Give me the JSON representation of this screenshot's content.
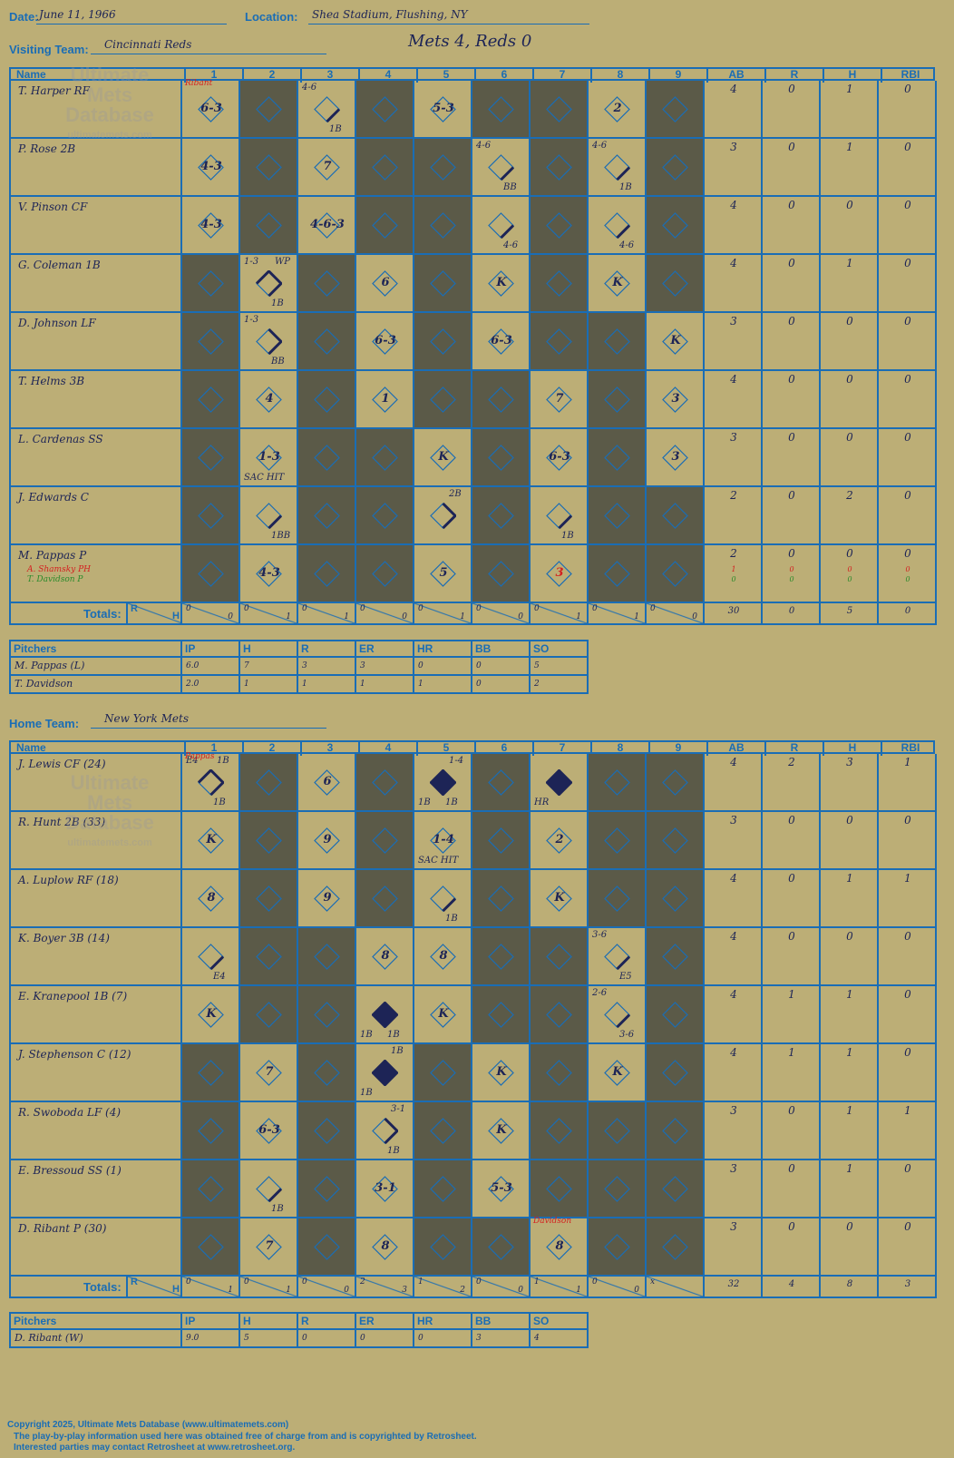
{
  "header": {
    "date_label": "Date:",
    "date": "June 11, 1966",
    "location_label": "Location:",
    "location": "Shea Stadium, Flushing, NY",
    "visiting_label": "Visiting Team:",
    "visiting_team": "Cincinnati Reds",
    "home_label": "Home Team:",
    "home_team": "New York Mets",
    "result": "Mets 4, Reds 0"
  },
  "columns": {
    "name": "Name",
    "innings": [
      "1",
      "2",
      "3",
      "4",
      "5",
      "6",
      "7",
      "8",
      "9"
    ],
    "ab": "AB",
    "r": "R",
    "h": "H",
    "rbi": "RBI"
  },
  "totals_label": "Totals:",
  "totals_r": "R",
  "totals_h": "H",
  "watermark": {
    "l1": "Ultimate",
    "l2": "Mets",
    "l3": "Database",
    "l4": "ultimatemets.com"
  },
  "visitors": {
    "players": [
      {
        "name": "T. Harper RF",
        "ab": "4",
        "r": "0",
        "h": "1",
        "rbi": "0"
      },
      {
        "name": "P. Rose 2B",
        "ab": "3",
        "r": "0",
        "h": "1",
        "rbi": "0"
      },
      {
        "name": "V. Pinson CF",
        "ab": "4",
        "r": "0",
        "h": "0",
        "rbi": "0"
      },
      {
        "name": "G. Coleman 1B",
        "ab": "4",
        "r": "0",
        "h": "1",
        "rbi": "0"
      },
      {
        "name": "D. Johnson LF",
        "ab": "3",
        "r": "0",
        "h": "0",
        "rbi": "0"
      },
      {
        "name": "T. Helms 3B",
        "ab": "4",
        "r": "0",
        "h": "0",
        "rbi": "0"
      },
      {
        "name": "L. Cardenas SS",
        "ab": "3",
        "r": "0",
        "h": "0",
        "rbi": "0"
      },
      {
        "name": "J. Edwards C",
        "ab": "2",
        "r": "0",
        "h": "2",
        "rbi": "0"
      },
      {
        "name": "M. Pappas P",
        "ab": "2",
        "r": "0",
        "h": "0",
        "rbi": "0",
        "subs": [
          {
            "name": "A. Shamsky PH",
            "ab": "1",
            "r": "0",
            "h": "0",
            "rbi": "0"
          },
          {
            "name": "T. Davidson P",
            "ab": "0",
            "r": "0",
            "h": "0",
            "rbi": "0"
          }
        ]
      }
    ],
    "totals": {
      "innings": [
        [
          "0",
          "0"
        ],
        [
          "0",
          "1"
        ],
        [
          "0",
          "1"
        ],
        [
          "0",
          "0"
        ],
        [
          "0",
          "1"
        ],
        [
          "0",
          "0"
        ],
        [
          "0",
          "1"
        ],
        [
          "0",
          "1"
        ],
        [
          "0",
          "0"
        ]
      ],
      "ab": "30",
      "r": "0",
      "h": "5",
      "rbi": "0"
    },
    "pitchers": [
      {
        "name": "M. Pappas (L)",
        "ip": "6.0",
        "h": "7",
        "r": "3",
        "er": "3",
        "hr": "0",
        "bb": "0",
        "so": "5"
      },
      {
        "name": "T. Davidson",
        "ip": "2.0",
        "h": "1",
        "r": "1",
        "er": "1",
        "hr": "1",
        "bb": "0",
        "so": "2"
      }
    ]
  },
  "home": {
    "players": [
      {
        "name": "J. Lewis CF (24)",
        "ab": "4",
        "r": "2",
        "h": "3",
        "rbi": "1"
      },
      {
        "name": "R. Hunt 2B (33)",
        "ab": "3",
        "r": "0",
        "h": "0",
        "rbi": "0"
      },
      {
        "name": "A. Luplow RF (18)",
        "ab": "4",
        "r": "0",
        "h": "1",
        "rbi": "1"
      },
      {
        "name": "K. Boyer 3B (14)",
        "ab": "4",
        "r": "0",
        "h": "0",
        "rbi": "0"
      },
      {
        "name": "E. Kranepool 1B (7)",
        "ab": "4",
        "r": "1",
        "h": "1",
        "rbi": "0"
      },
      {
        "name": "J. Stephenson C (12)",
        "ab": "4",
        "r": "1",
        "h": "1",
        "rbi": "0"
      },
      {
        "name": "R. Swoboda LF (4)",
        "ab": "3",
        "r": "0",
        "h": "1",
        "rbi": "1"
      },
      {
        "name": "E. Bressoud SS (1)",
        "ab": "3",
        "r": "0",
        "h": "1",
        "rbi": "0"
      },
      {
        "name": "D. Ribant P (30)",
        "ab": "3",
        "r": "0",
        "h": "0",
        "rbi": "0"
      }
    ],
    "totals": {
      "innings": [
        [
          "0",
          "1"
        ],
        [
          "0",
          "1"
        ],
        [
          "0",
          "0"
        ],
        [
          "2",
          "3"
        ],
        [
          "1",
          "2"
        ],
        [
          "0",
          "0"
        ],
        [
          "1",
          "1"
        ],
        [
          "0",
          "0"
        ],
        [
          "x",
          ""
        ]
      ],
      "ab": "32",
      "r": "4",
      "h": "8",
      "rbi": "3"
    },
    "pitchers": [
      {
        "name": "D. Ribant (W)",
        "ip": "9.0",
        "h": "5",
        "r": "0",
        "er": "0",
        "hr": "0",
        "bb": "3",
        "so": "4"
      }
    ]
  },
  "pitcher_cols": {
    "pitchers": "Pitchers",
    "ip": "IP",
    "h": "H",
    "r": "R",
    "er": "ER",
    "hr": "HR",
    "bb": "BB",
    "so": "SO"
  },
  "footer": {
    "l1": "Copyright 2025, Ultimate Mets Database (www.ultimatemets.com)",
    "l2": "The play-by-play information used here was obtained free of charge from and is copyrighted by Retrosheet.",
    "l3": "Interested parties may contact Retrosheet at www.retrosheet.org."
  },
  "plays": {
    "visitors": [
      [
        {
          "i": 1,
          "r": "6-3",
          "note": "Ribant",
          "noteColor": "red"
        },
        {
          "i": 3,
          "r": "",
          "tl": "4-6",
          "br": "1B",
          "path": "1"
        },
        {
          "i": 5,
          "r": "5-3"
        },
        {
          "i": 8,
          "r": "2"
        }
      ],
      [
        {
          "i": 1,
          "r": "4-3"
        },
        {
          "i": 3,
          "r": "7"
        },
        {
          "i": 6,
          "r": "",
          "tl": "4-6",
          "br": "BB",
          "path": "1"
        },
        {
          "i": 8,
          "r": "",
          "tl": "4-6",
          "br": "1B",
          "path": "1"
        }
      ],
      [
        {
          "i": 1,
          "r": "4-3"
        },
        {
          "i": 3,
          "r": "4-6-3"
        },
        {
          "i": 6,
          "r": "",
          "br": "4-6",
          "path": "1"
        },
        {
          "i": 8,
          "r": "",
          "br": "4-6",
          "path": "1"
        }
      ],
      [
        {
          "i": 2,
          "r": "",
          "tl": "1-3",
          "tr": "WP",
          "br": "1B",
          "path": "3"
        },
        {
          "i": 4,
          "r": "6"
        },
        {
          "i": 6,
          "r": "K"
        },
        {
          "i": 8,
          "r": "K"
        }
      ],
      [
        {
          "i": 2,
          "r": "",
          "tl": "1-3",
          "br": "BB",
          "path": "2"
        },
        {
          "i": 4,
          "r": "6-3"
        },
        {
          "i": 6,
          "r": "6-3"
        },
        {
          "i": 9,
          "r": "K"
        }
      ],
      [
        {
          "i": 2,
          "r": "4"
        },
        {
          "i": 4,
          "r": "1"
        },
        {
          "i": 7,
          "r": "7"
        },
        {
          "i": 9,
          "r": "3"
        }
      ],
      [
        {
          "i": 2,
          "r": "1-3",
          "bl": "SAC HIT"
        },
        {
          "i": 5,
          "r": "K"
        },
        {
          "i": 7,
          "r": "6-3"
        },
        {
          "i": 9,
          "r": "3"
        }
      ],
      [
        {
          "i": 2,
          "r": "",
          "br": "1BB",
          "path": "1"
        },
        {
          "i": 5,
          "r": "",
          "tr": "2B",
          "path": "2b"
        },
        {
          "i": 7,
          "r": "",
          "br": "1B",
          "path": "1"
        }
      ],
      [
        {
          "i": 2,
          "r": "4-3"
        },
        {
          "i": 5,
          "r": "5"
        },
        {
          "i": 7,
          "r": "3",
          "color": "red"
        }
      ]
    ],
    "home": [
      [
        {
          "i": 1,
          "r": "",
          "tl": "E4",
          "tr": "1B",
          "br": "1B",
          "path": "3",
          "note": "Pappas",
          "noteColor": "red"
        },
        {
          "i": 3,
          "r": "6"
        },
        {
          "i": 5,
          "r": "",
          "tr": "1-4",
          "bl": "1B",
          "br": "1B",
          "path": "full"
        },
        {
          "i": 7,
          "r": "",
          "bl": "HR",
          "path": "full"
        }
      ],
      [
        {
          "i": 1,
          "r": "K"
        },
        {
          "i": 3,
          "r": "9"
        },
        {
          "i": 5,
          "r": "1-4",
          "bl": "SAC HIT"
        },
        {
          "i": 7,
          "r": "2"
        }
      ],
      [
        {
          "i": 1,
          "r": "8"
        },
        {
          "i": 3,
          "r": "9"
        },
        {
          "i": 5,
          "r": "",
          "br": "1B",
          "path": "1"
        },
        {
          "i": 7,
          "r": "K"
        }
      ],
      [
        {
          "i": 1,
          "r": "",
          "br": "E4",
          "path": "1"
        },
        {
          "i": 4,
          "r": "8"
        },
        {
          "i": 5,
          "r": "8"
        },
        {
          "i": 8,
          "r": "",
          "tl": "3-6",
          "br": "E5",
          "path": "1"
        }
      ],
      [
        {
          "i": 1,
          "r": "K"
        },
        {
          "i": 4,
          "r": "",
          "bl": "1B",
          "br": "1B",
          "path": "full"
        },
        {
          "i": 5,
          "r": "K"
        },
        {
          "i": 8,
          "r": "",
          "tl": "2-6",
          "br": "3-6",
          "path": "1"
        }
      ],
      [
        {
          "i": 2,
          "r": "7"
        },
        {
          "i": 4,
          "r": "",
          "tr": "1B",
          "bl": "1B",
          "path": "full"
        },
        {
          "i": 6,
          "r": "K"
        },
        {
          "i": 8,
          "r": "K"
        }
      ],
      [
        {
          "i": 2,
          "r": "6-3"
        },
        {
          "i": 4,
          "r": "",
          "tr": "3-1",
          "br": "1B",
          "path": "2"
        },
        {
          "i": 6,
          "r": "K"
        }
      ],
      [
        {
          "i": 2,
          "r": "",
          "br": "1B",
          "path": "1"
        },
        {
          "i": 4,
          "r": "3-1"
        },
        {
          "i": 6,
          "r": "5-3"
        }
      ],
      [
        {
          "i": 2,
          "r": "7"
        },
        {
          "i": 4,
          "r": "8"
        },
        {
          "i": 7,
          "r": "8",
          "note": "Davidson",
          "noteColor": "red"
        }
      ]
    ]
  }
}
